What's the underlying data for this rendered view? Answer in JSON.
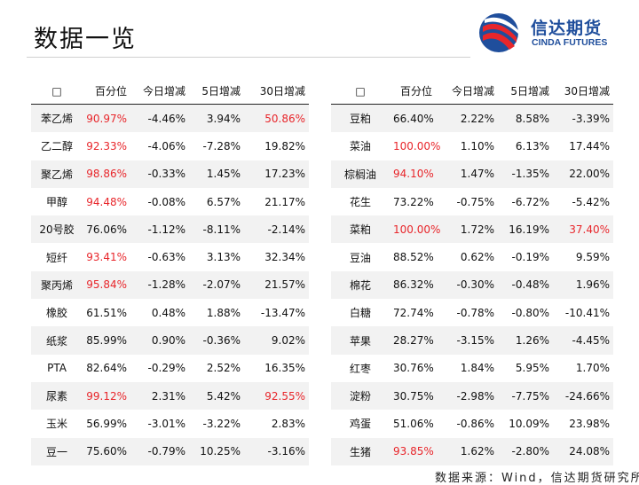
{
  "header": {
    "title": "数据一览",
    "logo_cn": "信达期货",
    "logo_en": "CINDA FUTURES"
  },
  "highlight_color": "#e8262b",
  "tables": [
    {
      "header": [
        "□",
        "百分位",
        "今日增减",
        "5日增减",
        "30日增减"
      ],
      "rows": [
        [
          "苯乙烯",
          "90.97%",
          "-4.46%",
          "3.94%",
          "50.86%"
        ],
        [
          "乙二醇",
          "92.33%",
          "-4.06%",
          "-7.28%",
          "19.82%"
        ],
        [
          "聚乙烯",
          "98.86%",
          "-0.33%",
          "1.45%",
          "17.23%"
        ],
        [
          "甲醇",
          "94.48%",
          "-0.08%",
          "6.57%",
          "21.17%"
        ],
        [
          "20号胶",
          "76.06%",
          "-1.12%",
          "-8.11%",
          "-2.14%"
        ],
        [
          "短纤",
          "93.41%",
          "-0.63%",
          "3.13%",
          "32.34%"
        ],
        [
          "聚丙烯",
          "95.84%",
          "-1.28%",
          "-2.07%",
          "21.57%"
        ],
        [
          "橡胶",
          "61.51%",
          "0.48%",
          "1.88%",
          "-13.47%"
        ],
        [
          "纸浆",
          "85.99%",
          "0.90%",
          "-0.36%",
          "9.02%"
        ],
        [
          "PTA",
          "82.64%",
          "-0.29%",
          "2.52%",
          "16.35%"
        ],
        [
          "尿素",
          "99.12%",
          "2.31%",
          "5.42%",
          "92.55%"
        ],
        [
          "玉米",
          "56.99%",
          "-3.01%",
          "-3.22%",
          "2.83%"
        ],
        [
          "豆一",
          "75.60%",
          "-0.79%",
          "10.25%",
          "-3.16%"
        ]
      ],
      "highlighted": [
        [
          0,
          1
        ],
        [
          0,
          4
        ],
        [
          1,
          1
        ],
        [
          2,
          1
        ],
        [
          3,
          1
        ],
        [
          5,
          1
        ],
        [
          6,
          1
        ],
        [
          10,
          1
        ],
        [
          10,
          4
        ]
      ]
    },
    {
      "header": [
        "□",
        "百分位",
        "今日增减",
        "5日增减",
        "30日增减"
      ],
      "rows": [
        [
          "豆粕",
          "66.40%",
          "2.22%",
          "8.58%",
          "-3.39%"
        ],
        [
          "菜油",
          "100.00%",
          "1.10%",
          "6.13%",
          "17.44%"
        ],
        [
          "棕榈油",
          "94.10%",
          "1.47%",
          "-1.35%",
          "22.00%"
        ],
        [
          "花生",
          "73.22%",
          "-0.75%",
          "-6.72%",
          "-5.42%"
        ],
        [
          "菜粕",
          "100.00%",
          "1.72%",
          "16.19%",
          "37.40%"
        ],
        [
          "豆油",
          "88.52%",
          "0.62%",
          "-0.19%",
          "9.59%"
        ],
        [
          "棉花",
          "86.32%",
          "-0.30%",
          "-0.48%",
          "1.96%"
        ],
        [
          "白糖",
          "72.74%",
          "-0.78%",
          "-0.80%",
          "-10.41%"
        ],
        [
          "苹果",
          "28.27%",
          "-3.15%",
          "1.26%",
          "-4.45%"
        ],
        [
          "红枣",
          "30.76%",
          "1.84%",
          "5.95%",
          "1.70%"
        ],
        [
          "淀粉",
          "30.75%",
          "-2.98%",
          "-7.75%",
          "-24.66%"
        ],
        [
          "鸡蛋",
          "51.06%",
          "-0.86%",
          "10.09%",
          "23.98%"
        ],
        [
          "生猪",
          "93.85%",
          "1.62%",
          "-2.80%",
          "24.08%"
        ]
      ],
      "highlighted": [
        [
          1,
          1
        ],
        [
          2,
          1
        ],
        [
          4,
          1
        ],
        [
          4,
          4
        ],
        [
          12,
          1
        ]
      ]
    }
  ],
  "source": "数据来源：Wind，信达期货研究所"
}
